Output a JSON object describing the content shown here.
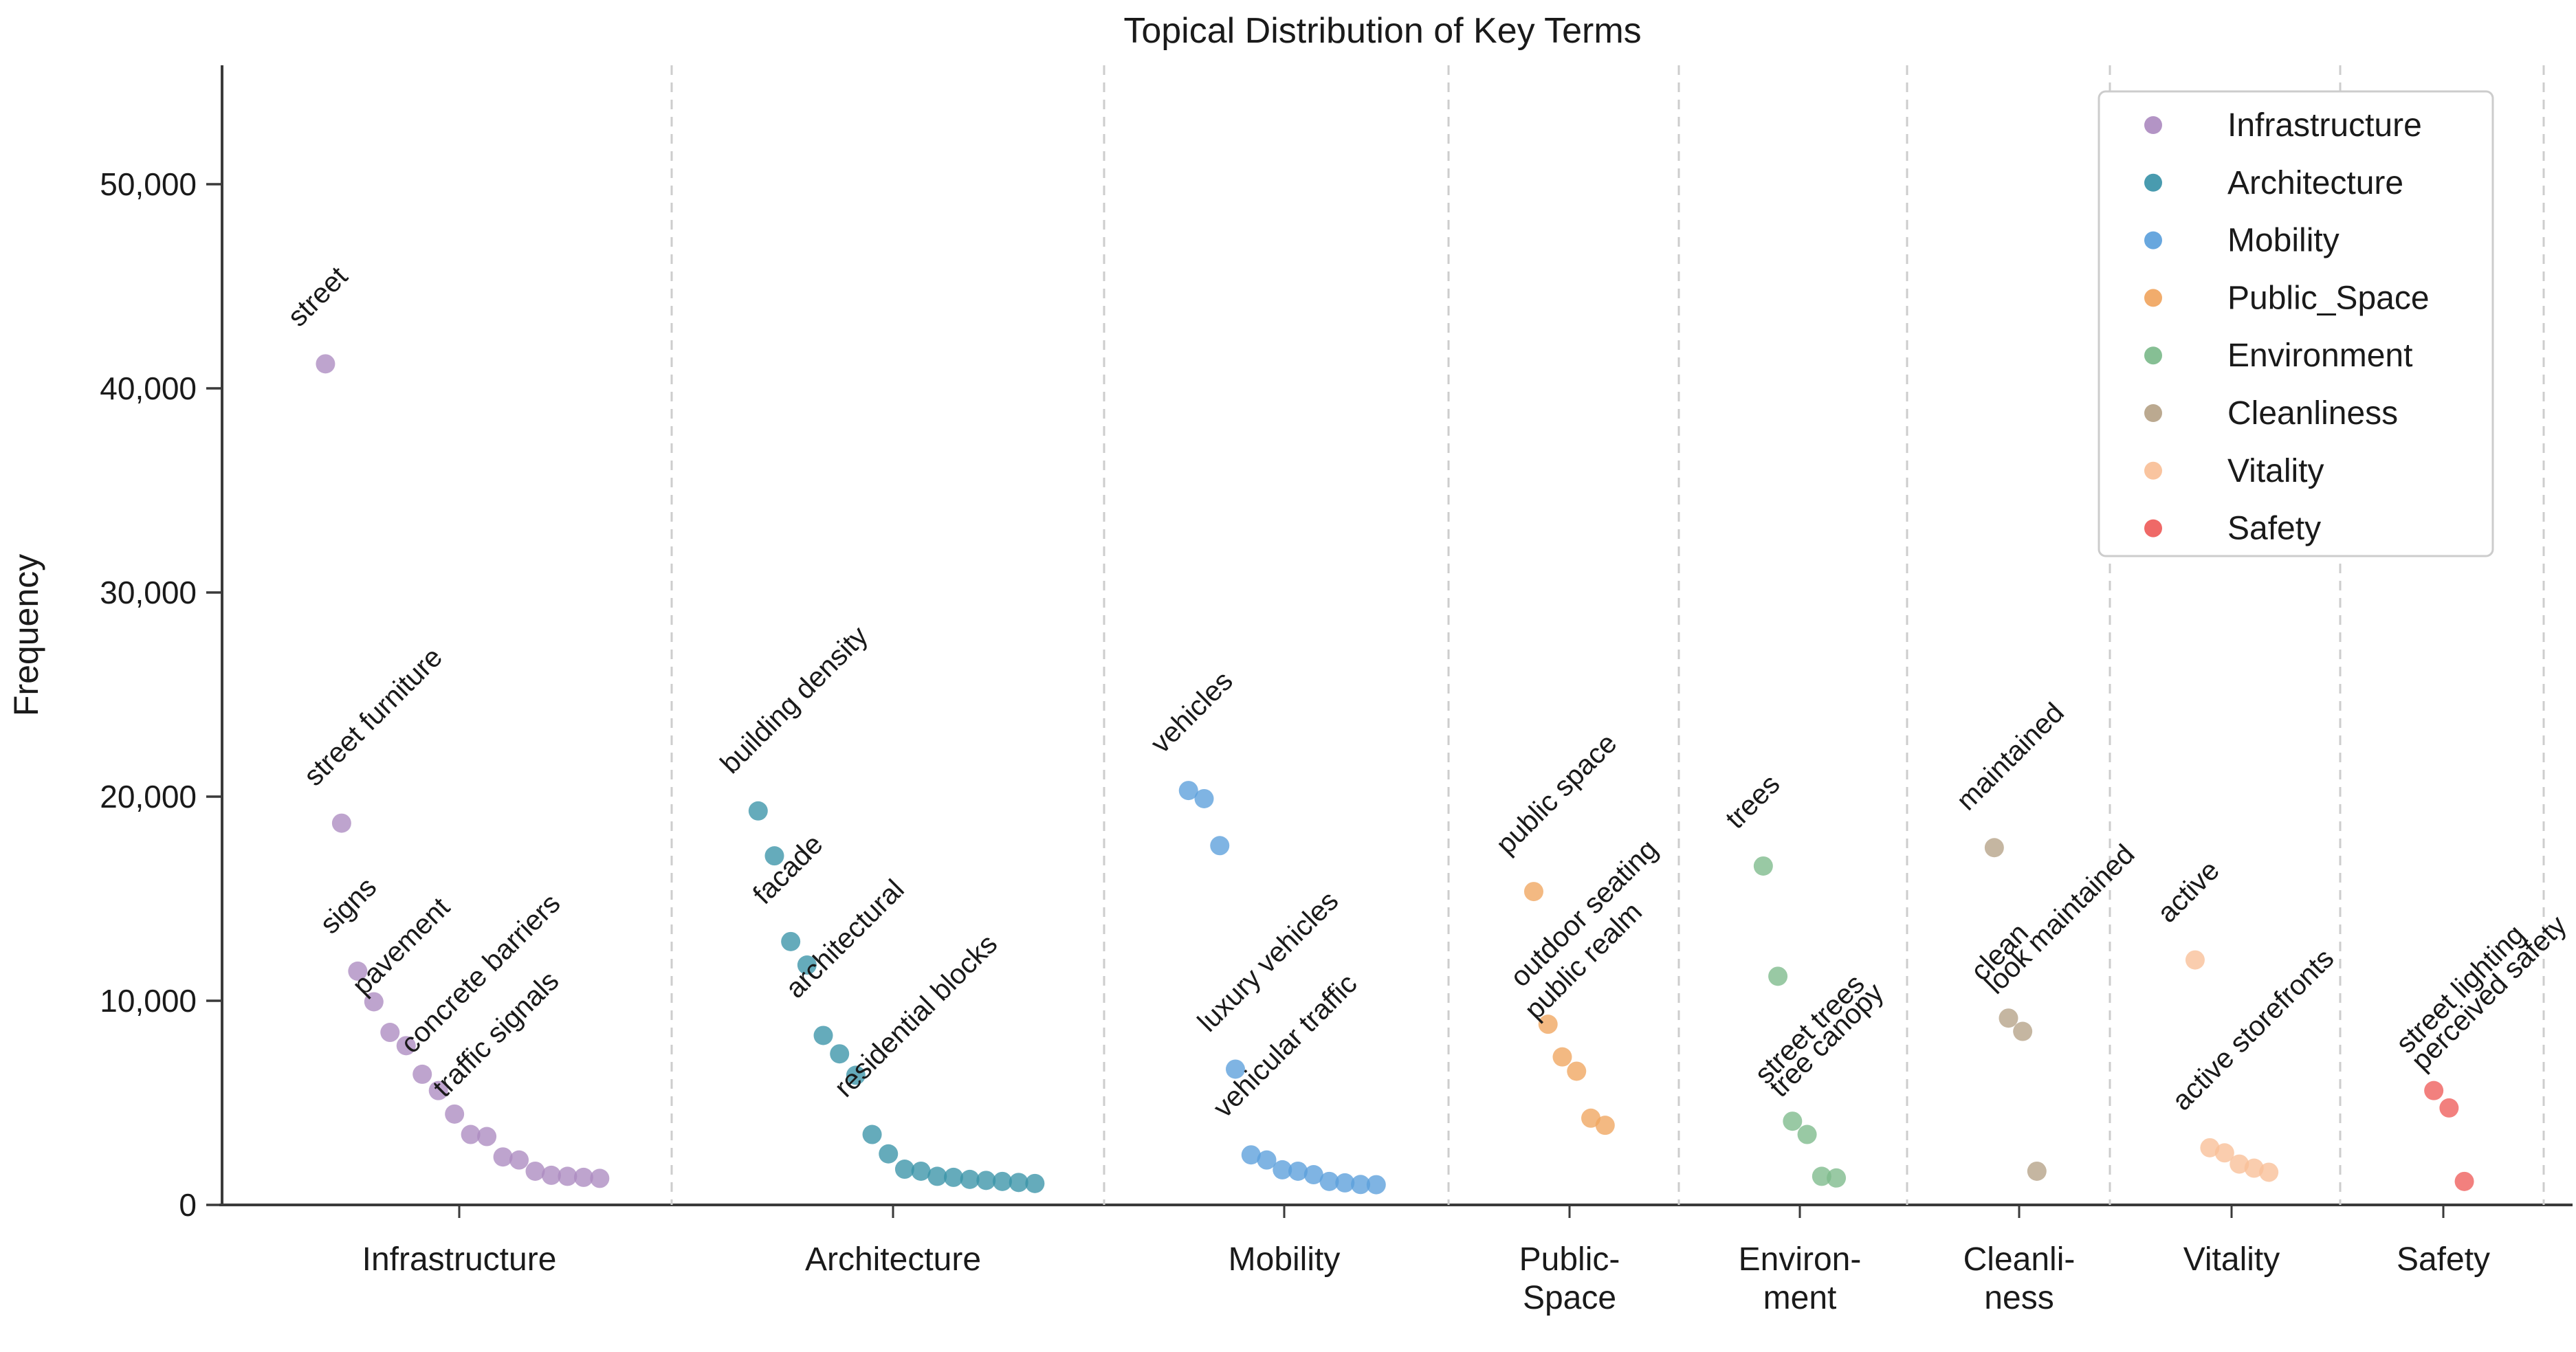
{
  "title": "Topical Distribution of Key Terms",
  "axes": {
    "ylabel": "Frequency",
    "ytick_labels": [
      "0",
      "10,000",
      "20,000",
      "30,000",
      "40,000",
      "50,000"
    ]
  },
  "chart_data": {
    "type": "scatter",
    "title": "Topical Distribution of Key Terms",
    "xlabel": "",
    "ylabel": "Frequency",
    "ylim": [
      0,
      55800
    ],
    "yticks": [
      0,
      10000,
      20000,
      30000,
      40000,
      50000
    ],
    "ytick_labels": [
      "0",
      "10,000",
      "20,000",
      "30,000",
      "40,000",
      "50,000"
    ],
    "grid": "dashed vertical separators between topic columns",
    "legend_position": "upper right",
    "marker": "circle",
    "marker_opacity": 0.78,
    "categories": [
      {
        "name": "Infrastructure",
        "legend_label": "Infrastructure",
        "axis_label_lines": [
          "Infrastructure"
        ],
        "color": "#ac8bc0",
        "points": [
          {
            "value": 41200,
            "label": "street"
          },
          {
            "value": 18700,
            "label": "street furniture"
          },
          {
            "value": 11450,
            "label": "signs"
          },
          {
            "value": 9950
          },
          {
            "value": 8450,
            "label": "pavement"
          },
          {
            "value": 7800
          },
          {
            "value": 6400
          },
          {
            "value": 5600,
            "label": "concrete barriers"
          },
          {
            "value": 4450
          },
          {
            "value": 3450,
            "label": "traffic signals"
          },
          {
            "value": 3350
          },
          {
            "value": 2350
          },
          {
            "value": 2200
          },
          {
            "value": 1650
          },
          {
            "value": 1450
          },
          {
            "value": 1400
          },
          {
            "value": 1350
          },
          {
            "value": 1300
          }
        ]
      },
      {
        "name": "Architecture",
        "legend_label": "Architecture",
        "axis_label_lines": [
          "Architecture"
        ],
        "color": "#3a93a8",
        "points": [
          {
            "value": 19300,
            "label": "building density"
          },
          {
            "value": 17100
          },
          {
            "value": 12900,
            "label": "facade"
          },
          {
            "value": 11750
          },
          {
            "value": 8300,
            "label": "architectural"
          },
          {
            "value": 7400
          },
          {
            "value": 6350
          },
          {
            "value": 3450,
            "label": "residential blocks"
          },
          {
            "value": 2500
          },
          {
            "value": 1750
          },
          {
            "value": 1650
          },
          {
            "value": 1400
          },
          {
            "value": 1350
          },
          {
            "value": 1250
          },
          {
            "value": 1200
          },
          {
            "value": 1150
          },
          {
            "value": 1100
          },
          {
            "value": 1050
          }
        ]
      },
      {
        "name": "Mobility",
        "legend_label": "Mobility",
        "axis_label_lines": [
          "Mobility"
        ],
        "color": "#5b9fdb",
        "points": [
          {
            "value": 20300,
            "label": "vehicles"
          },
          {
            "value": 19900
          },
          {
            "value": 17600
          },
          {
            "value": 6650,
            "label": "luxury vehicles"
          },
          {
            "value": 2450,
            "label": "vehicular traffic"
          },
          {
            "value": 2200
          },
          {
            "value": 1720
          },
          {
            "value": 1650
          },
          {
            "value": 1480
          },
          {
            "value": 1150
          },
          {
            "value": 1080
          },
          {
            "value": 1000
          },
          {
            "value": 990
          }
        ]
      },
      {
        "name": "Public_Space",
        "legend_label": "Public_Space",
        "axis_label_lines": [
          "Public-",
          "Space"
        ],
        "color": "#f0a55f",
        "points": [
          {
            "value": 15350,
            "label": "public space"
          },
          {
            "value": 8850,
            "label": "outdoor seating"
          },
          {
            "value": 7250,
            "label": "public realm"
          },
          {
            "value": 6550
          },
          {
            "value": 4250
          },
          {
            "value": 3900
          }
        ]
      },
      {
        "name": "Environment",
        "legend_label": "Environment",
        "axis_label_lines": [
          "Environ-",
          "ment"
        ],
        "color": "#7cba8b",
        "points": [
          {
            "value": 16600,
            "label": "trees"
          },
          {
            "value": 11200
          },
          {
            "value": 4100,
            "label": "street trees"
          },
          {
            "value": 3450,
            "label": "tree canopy"
          },
          {
            "value": 1400
          },
          {
            "value": 1320
          }
        ]
      },
      {
        "name": "Cleanliness",
        "legend_label": "Cleanliness",
        "axis_label_lines": [
          "Cleanli-",
          "ness"
        ],
        "color": "#b5a287",
        "points": [
          {
            "value": 17500,
            "label": "maintained"
          },
          {
            "value": 9150,
            "label": "clean"
          },
          {
            "value": 8500,
            "label": "look maintained"
          },
          {
            "value": 1650
          }
        ]
      },
      {
        "name": "Vitality",
        "legend_label": "Vitality",
        "axis_label_lines": [
          "Vitality"
        ],
        "color": "#f8bf97",
        "points": [
          {
            "value": 12000,
            "label": "active"
          },
          {
            "value": 2800,
            "label": "active storefronts"
          },
          {
            "value": 2550
          },
          {
            "value": 2000
          },
          {
            "value": 1800
          },
          {
            "value": 1600
          }
        ]
      },
      {
        "name": "Safety",
        "legend_label": "Safety",
        "axis_label_lines": [
          "Safety"
        ],
        "color": "#ee5c5a",
        "points": [
          {
            "value": 5600,
            "label": "street lighting"
          },
          {
            "value": 4750,
            "label": "perceived safety"
          },
          {
            "value": 1150
          }
        ]
      }
    ]
  }
}
